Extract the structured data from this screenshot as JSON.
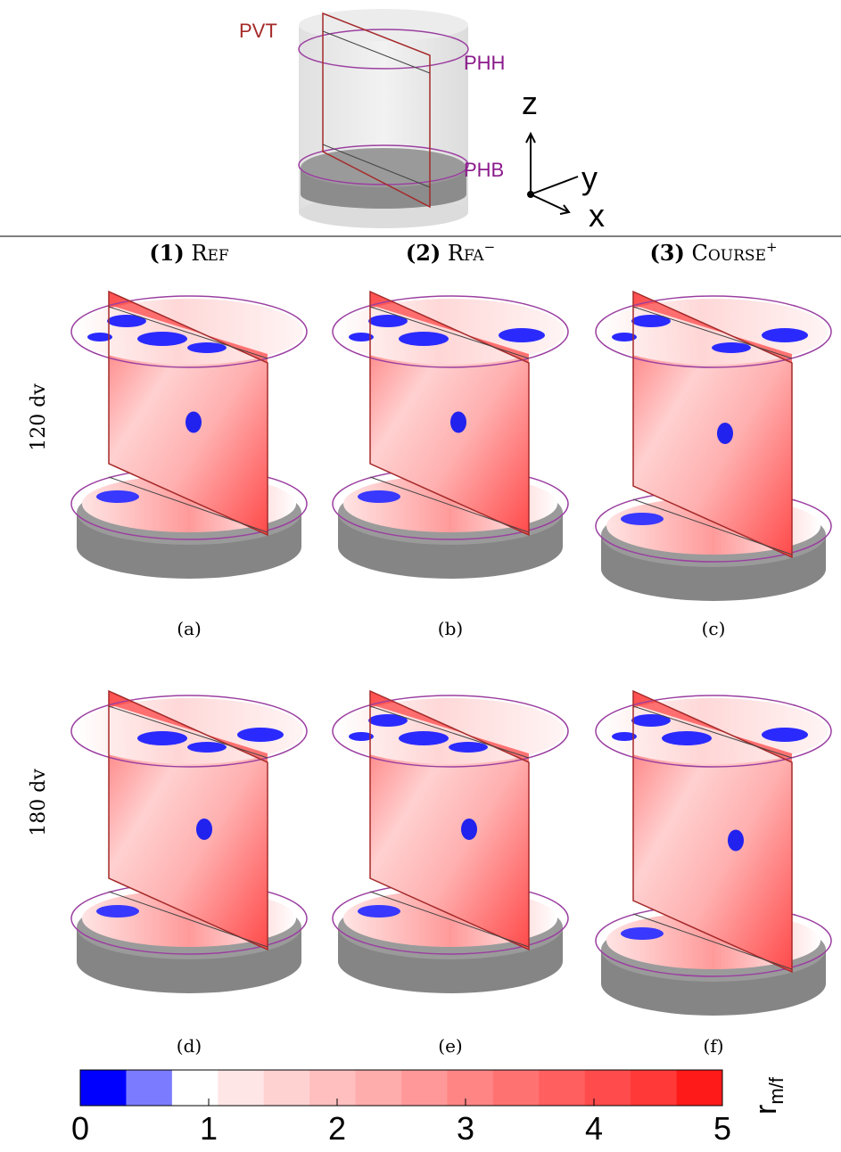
{
  "schematic": {
    "labels": {
      "pvt": "PVT",
      "phh": "PHH",
      "phb": "PHB"
    },
    "axes": {
      "z": "z",
      "y": "y",
      "x": "x"
    }
  },
  "columns": [
    {
      "number": "(1)",
      "name": "Ref"
    },
    {
      "number": "(2)",
      "name": "Rfa",
      "sup": "−"
    },
    {
      "number": "(3)",
      "name": "Course",
      "sup": "+"
    }
  ],
  "rows": [
    "120 dv",
    "180 dv"
  ],
  "panels": [
    "(a)",
    "(b)",
    "(c)",
    "(d)",
    "(e)",
    "(f)"
  ],
  "colorbar": {
    "label": "r",
    "label_sub": "m/f",
    "lim": [
      0,
      5
    ],
    "ticks": [
      0,
      1,
      2,
      3,
      4,
      5
    ],
    "colors": [
      "#0000ff",
      "#7b7bff",
      "#ffffff",
      "#ffe6e6",
      "#ffd2d2",
      "#ffbfbf",
      "#ffacac",
      "#ff9999",
      "#ff8585",
      "#ff7272",
      "#ff5f5f",
      "#ff4b4b",
      "#ff3838",
      "#ff1a1a"
    ]
  }
}
